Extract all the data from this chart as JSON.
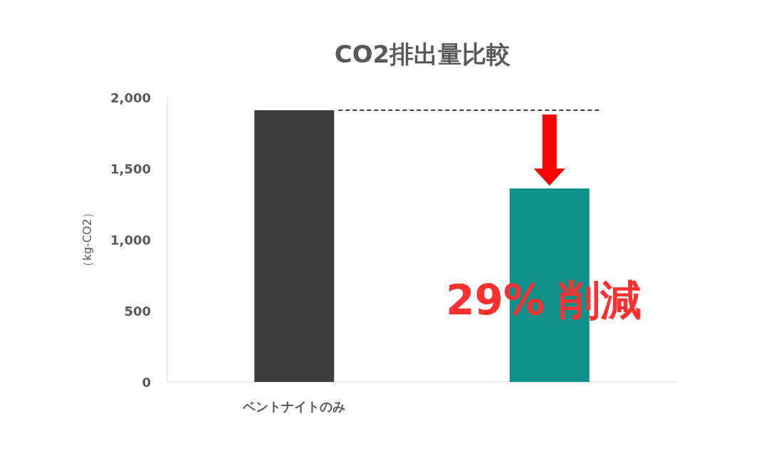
{
  "chart_data": {
    "type": "bar",
    "title": "CO2排出量比較",
    "ylabel": "（kg-CO2）",
    "categories": [
      "ベントナイトのみ",
      null
    ],
    "values": [
      1910,
      1360
    ],
    "colors": [
      "#3d3d3d",
      "#0f8f8a"
    ],
    "ylim": [
      0,
      2000
    ],
    "yticks": [
      {
        "value": 0,
        "label": "0"
      },
      {
        "value": 500,
        "label": "500"
      },
      {
        "value": 1000,
        "label": "1,000"
      },
      {
        "value": 1500,
        "label": "1,500"
      },
      {
        "value": 2000,
        "label": "2,000"
      }
    ],
    "grid": false,
    "ref_lines": [
      {
        "axis": "y",
        "value": 1910,
        "label": null,
        "color": "#000000",
        "line_style": "dashed"
      }
    ],
    "annotations": [
      "29% 削減"
    ]
  }
}
